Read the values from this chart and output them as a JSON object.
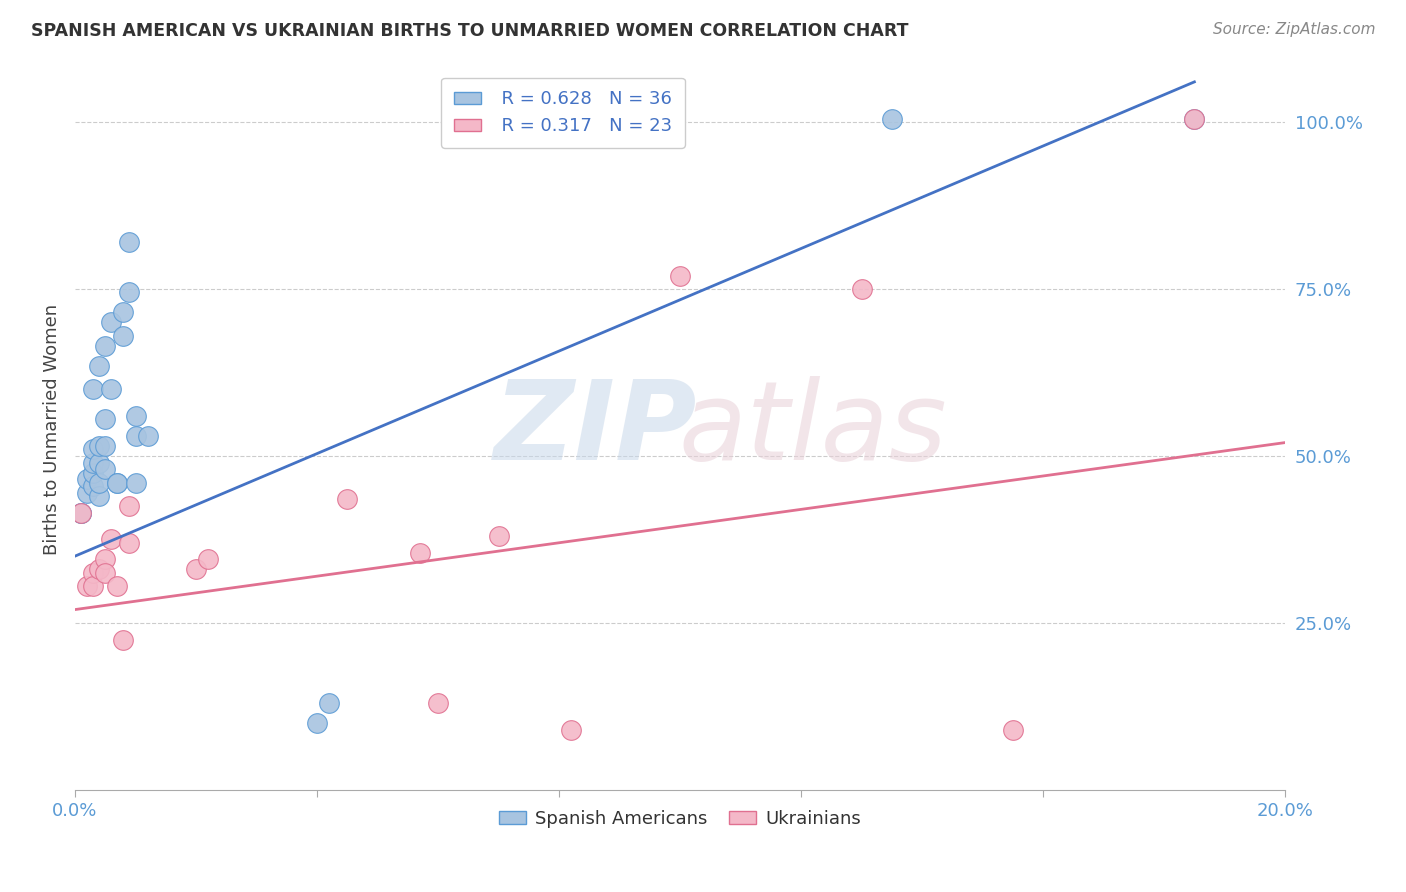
{
  "title": "SPANISH AMERICAN VS UKRAINIAN BIRTHS TO UNMARRIED WOMEN CORRELATION CHART",
  "source": "Source: ZipAtlas.com",
  "ylabel": "Births to Unmarried Women",
  "x_min": 0.0,
  "x_max": 0.2,
  "y_min": 0.0,
  "y_max": 1.08,
  "x_ticks": [
    0.0,
    0.04,
    0.08,
    0.12,
    0.16,
    0.2
  ],
  "y_ticks_right": [
    0.25,
    0.5,
    0.75,
    1.0
  ],
  "y_tick_labels_right": [
    "25.0%",
    "50.0%",
    "75.0%",
    "100.0%"
  ],
  "grid_color": "#cccccc",
  "background_color": "#ffffff",
  "spanish_color": "#a8c4e0",
  "ukrainian_color": "#f4b8c8",
  "spanish_edge_color": "#5b9bd5",
  "ukrainian_edge_color": "#e07090",
  "spanish_line_color": "#4472c4",
  "ukrainian_line_color": "#e07090",
  "legend_r_spanish": "R = 0.628",
  "legend_n_spanish": "N = 36",
  "legend_r_ukrainian": "R = 0.317",
  "legend_n_ukrainian": "N = 23",
  "sa_line_x": [
    0.0,
    0.185
  ],
  "sa_line_y": [
    0.35,
    1.06
  ],
  "uk_line_x": [
    0.0,
    0.2
  ],
  "uk_line_y": [
    0.27,
    0.52
  ],
  "sa_x": [
    0.001,
    0.001,
    0.002,
    0.002,
    0.003,
    0.003,
    0.003,
    0.003,
    0.003,
    0.004,
    0.004,
    0.004,
    0.004,
    0.004,
    0.005,
    0.005,
    0.005,
    0.005,
    0.006,
    0.006,
    0.007,
    0.007,
    0.008,
    0.008,
    0.009,
    0.009,
    0.01,
    0.01,
    0.01,
    0.012,
    0.04,
    0.042,
    0.085,
    0.09,
    0.135,
    0.185
  ],
  "sa_y": [
    0.415,
    0.415,
    0.445,
    0.465,
    0.455,
    0.475,
    0.49,
    0.51,
    0.6,
    0.44,
    0.46,
    0.49,
    0.515,
    0.635,
    0.48,
    0.515,
    0.555,
    0.665,
    0.6,
    0.7,
    0.46,
    0.46,
    0.68,
    0.715,
    0.745,
    0.82,
    0.53,
    0.56,
    0.46,
    0.53,
    0.1,
    0.13,
    1.005,
    1.005,
    1.005,
    1.005
  ],
  "uk_x": [
    0.001,
    0.002,
    0.003,
    0.003,
    0.004,
    0.005,
    0.005,
    0.006,
    0.007,
    0.008,
    0.009,
    0.009,
    0.02,
    0.022,
    0.045,
    0.057,
    0.06,
    0.07,
    0.082,
    0.1,
    0.13,
    0.155,
    0.185
  ],
  "uk_y": [
    0.415,
    0.305,
    0.325,
    0.305,
    0.33,
    0.345,
    0.325,
    0.375,
    0.305,
    0.225,
    0.425,
    0.37,
    0.33,
    0.345,
    0.435,
    0.355,
    0.13,
    0.38,
    0.09,
    0.77,
    0.75,
    0.09,
    1.005
  ]
}
